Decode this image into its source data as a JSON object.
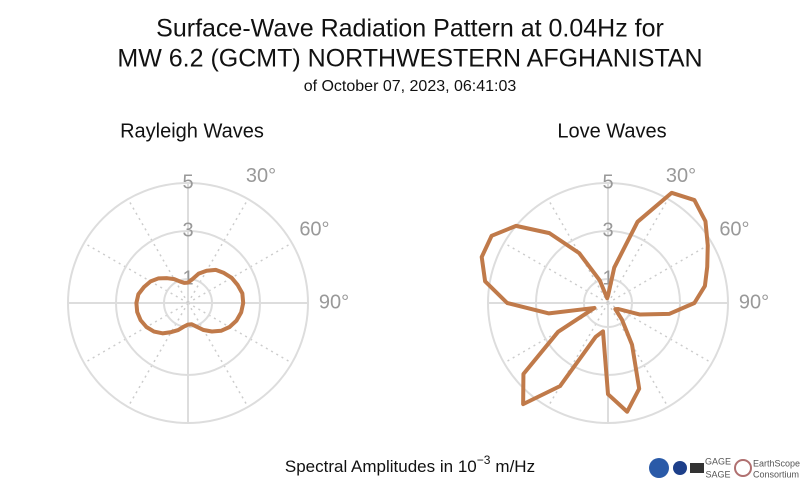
{
  "header": {
    "title_lines": [
      "Surface-Wave Radiation Pattern at 0.04Hz for",
      "MW 6.2 (GCMT) NORTHWESTERN AFGHANISTAN"
    ],
    "subtitle": "of October 07, 2023, 06:41:03"
  },
  "xlabel": {
    "text": "Spectral Amplitudes in 10",
    "sup": "−3",
    "unit": "m/Hz"
  },
  "footer": {
    "logos": [
      "GAGE",
      "SAGE",
      "EarthScope",
      "Consortium"
    ]
  },
  "chart_data": [
    {
      "type": "polar",
      "title": "Rayleigh Waves",
      "color": "#c07a4a",
      "theta": [
        0,
        10,
        20,
        30,
        40,
        50,
        60,
        70,
        80,
        90,
        100,
        110,
        120,
        130,
        140,
        150,
        160,
        170,
        180,
        190,
        200,
        210,
        220,
        230,
        240,
        250,
        260,
        270,
        280,
        290,
        300,
        310,
        320,
        330,
        340,
        350
      ],
      "values": [
        0.85,
        1.0,
        1.3,
        1.55,
        1.8,
        1.95,
        2.1,
        2.2,
        2.3,
        2.3,
        2.25,
        2.15,
        2.0,
        1.8,
        1.55,
        1.3,
        1.05,
        0.9,
        0.9,
        1.0,
        1.2,
        1.4,
        1.65,
        1.85,
        2.0,
        2.1,
        2.15,
        2.15,
        2.1,
        1.95,
        1.8,
        1.6,
        1.35,
        1.15,
        0.95,
        0.85
      ],
      "rlim": [
        0,
        5
      ],
      "rticks": [
        1,
        3,
        5
      ],
      "thetagrid": [
        0,
        30,
        60,
        90,
        120,
        150,
        180,
        210,
        240,
        270,
        300,
        330
      ],
      "thetaticks": [
        {
          "value": 30,
          "label": "30°"
        },
        {
          "value": 60,
          "label": "60°"
        },
        {
          "value": 90,
          "label": "90°"
        }
      ]
    },
    {
      "type": "polar",
      "title": "Love Waves",
      "color": "#c07a4a",
      "theta": [
        0,
        10,
        20,
        30,
        40,
        50,
        60,
        70,
        80,
        90,
        100,
        110,
        120,
        130,
        140,
        150,
        160,
        170,
        180,
        190,
        200,
        210,
        220,
        230,
        240,
        250,
        260,
        270,
        280,
        290,
        300,
        310,
        320,
        330,
        340,
        350
      ],
      "values": [
        0.3,
        1.5,
        3.6,
        5.3,
        5.6,
        5.3,
        4.8,
        4.4,
        4.1,
        3.6,
        2.6,
        1.4,
        0.5,
        0.4,
        0.9,
        2.0,
        3.8,
        4.6,
        3.8,
        1.2,
        1.5,
        4.0,
        5.5,
        4.6,
        2.4,
        0.6,
        2.5,
        4.2,
        5.2,
        5.6,
        5.6,
        5.0,
        3.8,
        2.4,
        1.0,
        0.2
      ],
      "rlim": [
        0,
        5
      ],
      "rticks": [
        1,
        3,
        5
      ],
      "thetagrid": [
        0,
        30,
        60,
        90,
        120,
        150,
        180,
        210,
        240,
        270,
        300,
        330
      ],
      "thetaticks": [
        {
          "value": 30,
          "label": "30°"
        },
        {
          "value": 60,
          "label": "60°"
        },
        {
          "value": 90,
          "label": "90°"
        }
      ]
    }
  ]
}
